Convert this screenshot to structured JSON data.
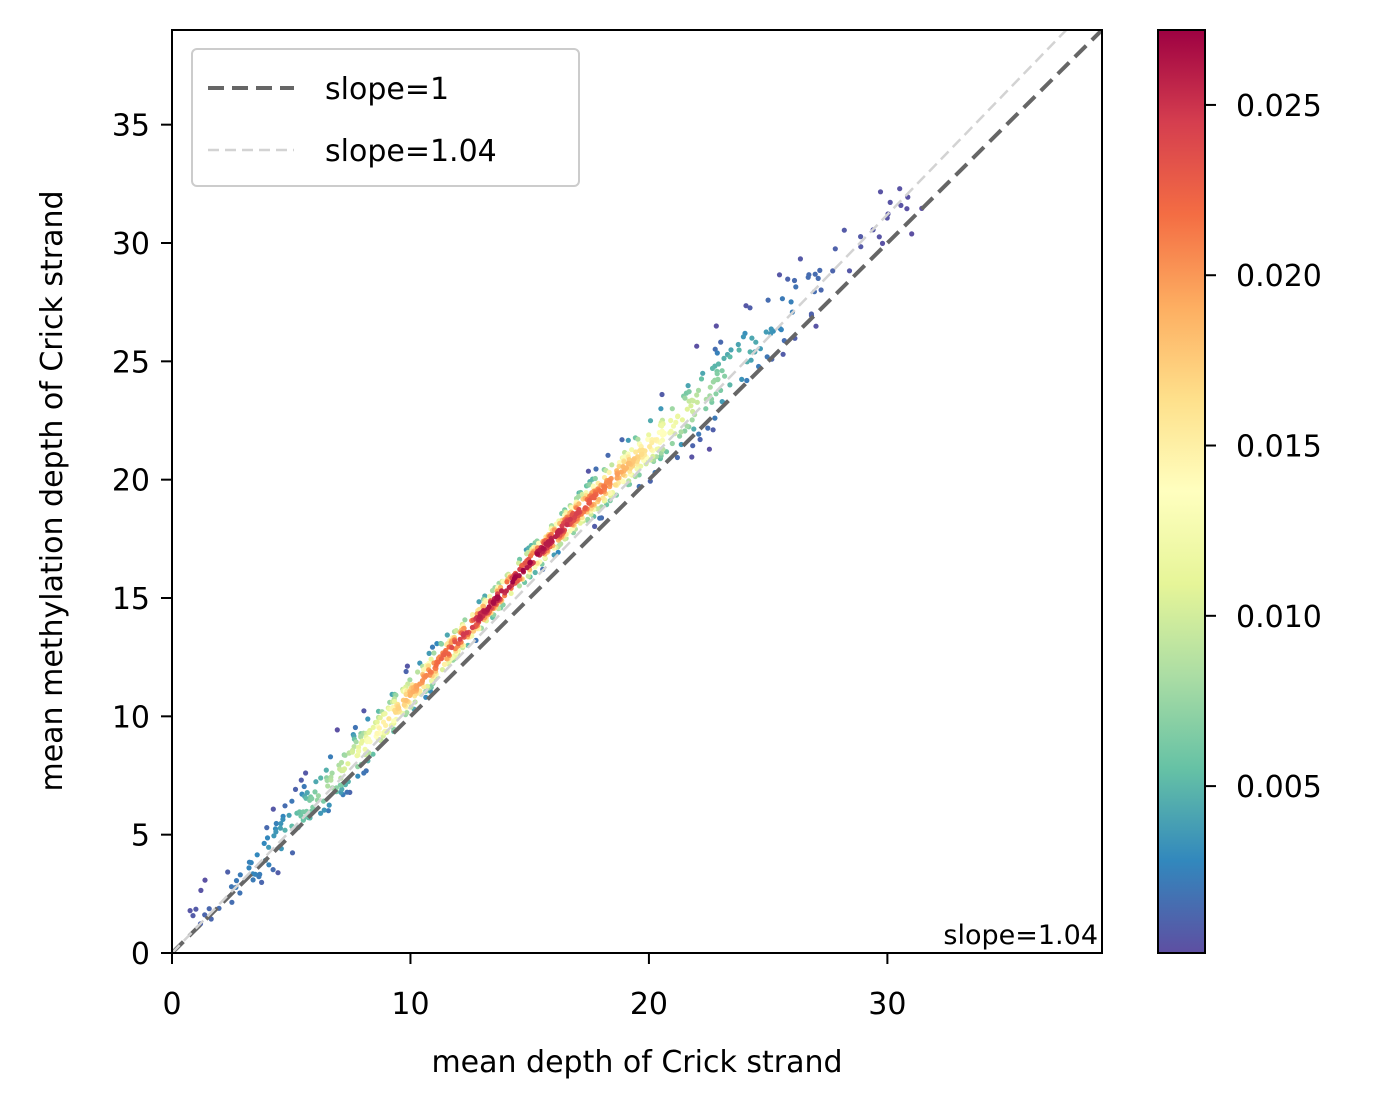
{
  "chart_data": {
    "type": "scatter",
    "title": "",
    "xlabel": "mean depth of Crick strand",
    "ylabel": "mean methylation depth of Crick strand",
    "xlim": [
      0,
      39
    ],
    "ylim": [
      0,
      39
    ],
    "xticks": [
      0,
      10,
      20,
      30
    ],
    "yticks": [
      0,
      5,
      10,
      15,
      20,
      25,
      30,
      35
    ],
    "grid": false,
    "legend": {
      "placement": "top-left",
      "entries": [
        {
          "label": "slope=1",
          "style": "dashed",
          "color": "#666666"
        },
        {
          "label": "slope=1.04",
          "style": "dashed",
          "color": "#d3d3d3"
        }
      ]
    },
    "lines": [
      {
        "name": "slope=1",
        "slope": 1.0,
        "color": "#666666"
      },
      {
        "name": "slope=1.04",
        "slope": 1.04,
        "color": "#d3d3d3"
      }
    ],
    "annotation": {
      "text": "slope=1.04",
      "placement": "bottom-right"
    },
    "colorbar": {
      "colormap": "Spectral_r",
      "min": 0.0001,
      "max": 0.0272,
      "ticks": [
        0.005,
        0.01,
        0.015,
        0.02,
        0.025
      ],
      "tick_labels": [
        "0.005",
        "0.010",
        "0.015",
        "0.020",
        "0.025"
      ]
    },
    "density_trend": {
      "description_x_values": [
        1,
        3,
        5,
        7,
        9,
        11,
        13,
        15,
        17,
        19,
        21,
        23,
        25,
        27,
        29,
        31.5
      ],
      "ridge_y_values": [
        1.1,
        3.2,
        5.4,
        7.6,
        9.8,
        12.1,
        14.3,
        16.5,
        18.6,
        20.5,
        22.3,
        24.2,
        26.3,
        28.3,
        30.5,
        32.8
      ],
      "peak_density_x_range": [
        11,
        17
      ],
      "point_count_approx": 1100
    }
  }
}
